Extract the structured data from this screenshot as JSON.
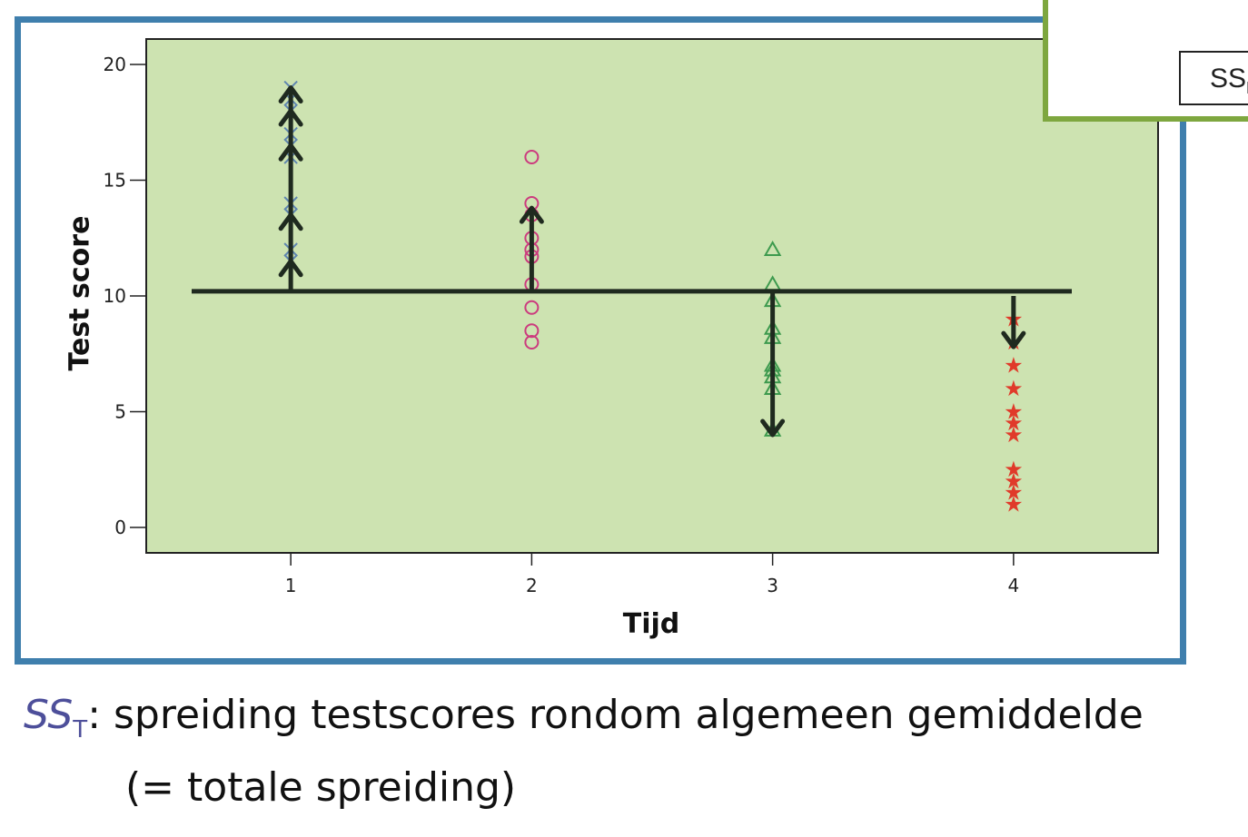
{
  "chart_data": {
    "type": "scatter",
    "title": "",
    "xlabel": "Tijd",
    "ylabel": "Test score",
    "x_ticks": [
      "1",
      "2",
      "3",
      "4"
    ],
    "y_ticks": [
      0,
      5,
      10,
      15,
      20
    ],
    "xlim": [
      0.4,
      4.6
    ],
    "ylim": [
      -1.1,
      21.1
    ],
    "grid": false,
    "grand_mean": 10.2,
    "colors": {
      "plot_bg": "#cde3b1",
      "group1": "#5f86b0",
      "group2": "#cc3b7e",
      "group3": "#3d9a4e",
      "group4": "#e03a2a",
      "lines": "#1f2a1f"
    },
    "series": [
      {
        "x": 1,
        "marker": "x",
        "values": [
          19,
          18.5,
          18,
          17,
          16.5,
          16,
          14,
          13.5,
          12,
          11.5
        ]
      },
      {
        "x": 2,
        "marker": "circle",
        "values": [
          16,
          14,
          13.5,
          12.5,
          12,
          11.7,
          10.5,
          9.5,
          8.5,
          8
        ]
      },
      {
        "x": 3,
        "marker": "triangle",
        "values": [
          12,
          10.5,
          9.8,
          8.6,
          8.2,
          7,
          6.8,
          6.5,
          6,
          4.2
        ]
      },
      {
        "x": 4,
        "marker": "star",
        "values": [
          9,
          8,
          7,
          6,
          5,
          4.5,
          4,
          2.5,
          2,
          1.5,
          1
        ]
      }
    ],
    "arrows": [
      {
        "x": 1,
        "from": 10.2,
        "to": 19,
        "heads": [
          19,
          18,
          16.5,
          13.5,
          11.5
        ]
      },
      {
        "x": 2,
        "from": 10.2,
        "to": 13.8,
        "heads": [
          13.8
        ]
      },
      {
        "x": 3,
        "from": 10.2,
        "to": 4,
        "heads": [
          4
        ]
      },
      {
        "x": 4,
        "from": 10,
        "to": 7.8,
        "heads": [
          7.8
        ]
      }
    ]
  },
  "overlay": {
    "label_main": "SS",
    "label_sub": "M"
  },
  "caption": {
    "symbol": "SS",
    "symbol_sub": "T",
    "line1": ": spreiding testscores rondom algemeen gemiddelde",
    "line2": "(= totale spreiding)"
  }
}
